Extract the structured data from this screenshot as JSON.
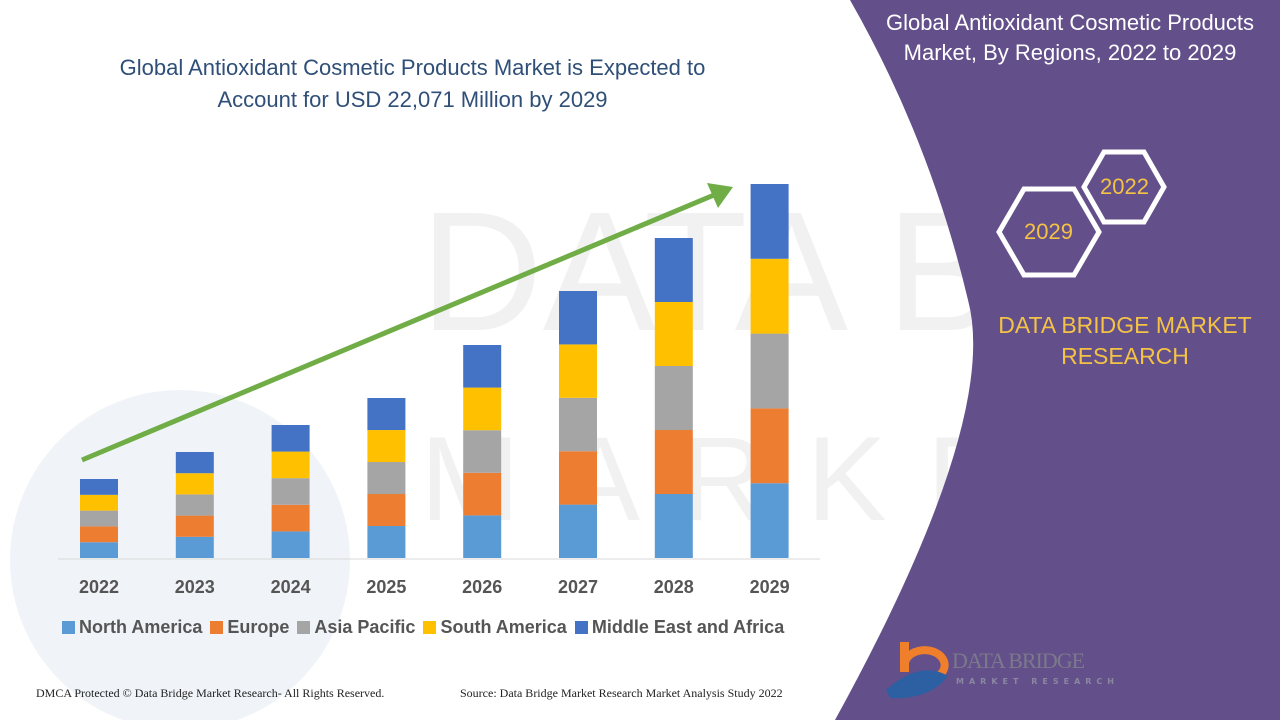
{
  "header": {
    "title_line1": "Global Antioxidant Cosmetic Products Market is Expected to",
    "title_line2": "Account for USD 22,071 Million by 2029"
  },
  "side_panel": {
    "title_line1": "Global Antioxidant Cosmetic Products",
    "title_line2": "Market, By Regions, 2022 to 2029",
    "hex_top": "2022",
    "hex_bottom": "2029",
    "brand_line1": "DATA BRIDGE MARKET",
    "brand_line2": "RESEARCH",
    "logo_text": "DATA BRIDGE",
    "logo_sub": "MARKET RESEARCH",
    "background_color": "#634f8a"
  },
  "footer": {
    "left": "DMCA Protected © Data Bridge Market Research- All Rights Reserved.",
    "right": "Source: Data Bridge Market Research Market Analysis Study 2022"
  },
  "chart_data": {
    "type": "bar",
    "stacked": true,
    "categories": [
      "2022",
      "2023",
      "2024",
      "2025",
      "2026",
      "2027",
      "2028",
      "2029"
    ],
    "series": [
      {
        "name": "North America",
        "color": "#5b9bd5",
        "values": [
          932,
          1251,
          1570,
          1888,
          2514,
          3151,
          3777,
          4414
        ]
      },
      {
        "name": "Europe",
        "color": "#ed7d31",
        "values": [
          932,
          1251,
          1570,
          1888,
          2514,
          3151,
          3777,
          4414
        ]
      },
      {
        "name": "Asia Pacific",
        "color": "#a5a5a5",
        "values": [
          932,
          1251,
          1570,
          1888,
          2514,
          3151,
          3777,
          4414
        ]
      },
      {
        "name": "South America",
        "color": "#ffc000",
        "values": [
          932,
          1251,
          1570,
          1888,
          2514,
          3151,
          3777,
          4415
        ]
      },
      {
        "name": "Middle East and Africa",
        "color": "#4472c4",
        "values": [
          934,
          1251,
          1569,
          1890,
          2514,
          3152,
          3776,
          4414
        ]
      }
    ],
    "ylim": [
      0,
      22071
    ],
    "grid": false,
    "legend": "bottom",
    "trend_arrow_color": "#70ad47"
  }
}
